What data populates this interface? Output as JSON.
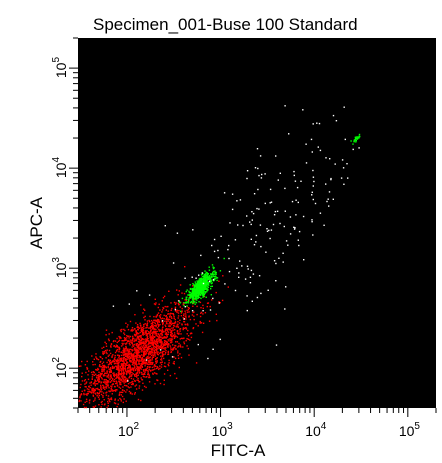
{
  "chart_data": {
    "type": "scatter",
    "title": "Specimen_001-Buse 100 Standard",
    "xlabel": "FITC-A",
    "ylabel": "APC-A",
    "x_scale": "log",
    "y_scale": "log",
    "xlim": [
      30,
      200000
    ],
    "ylim": [
      40,
      200000
    ],
    "grid": false,
    "background": "#000000",
    "x_ticks": [
      {
        "base": "10",
        "exp": "2",
        "value": 100
      },
      {
        "base": "10",
        "exp": "3",
        "value": 1000
      },
      {
        "base": "10",
        "exp": "4",
        "value": 10000
      },
      {
        "base": "10",
        "exp": "5",
        "value": 100000
      }
    ],
    "y_ticks": [
      {
        "base": "10",
        "exp": "2",
        "value": 100
      },
      {
        "base": "10",
        "exp": "3",
        "value": 1000
      },
      {
        "base": "10",
        "exp": "4",
        "value": 10000
      },
      {
        "base": "10",
        "exp": "5",
        "value": 100000
      }
    ],
    "populations": [
      {
        "color": "#ff0000",
        "center": [
          130,
          140
        ],
        "spread_log": [
          0.3,
          0.25
        ],
        "count": 2200
      },
      {
        "color": "#00ff00",
        "center": [
          600,
          650
        ],
        "spread_log": [
          0.07,
          0.07
        ],
        "count": 700
      },
      {
        "color": "#00ff00",
        "center": [
          28000,
          20000
        ],
        "spread_log": [
          0.02,
          0.02
        ],
        "count": 30
      },
      {
        "color": "#ffffff",
        "center": [
          3000,
          2500
        ],
        "spread_log": [
          0.55,
          0.55
        ],
        "count": 200
      }
    ]
  }
}
